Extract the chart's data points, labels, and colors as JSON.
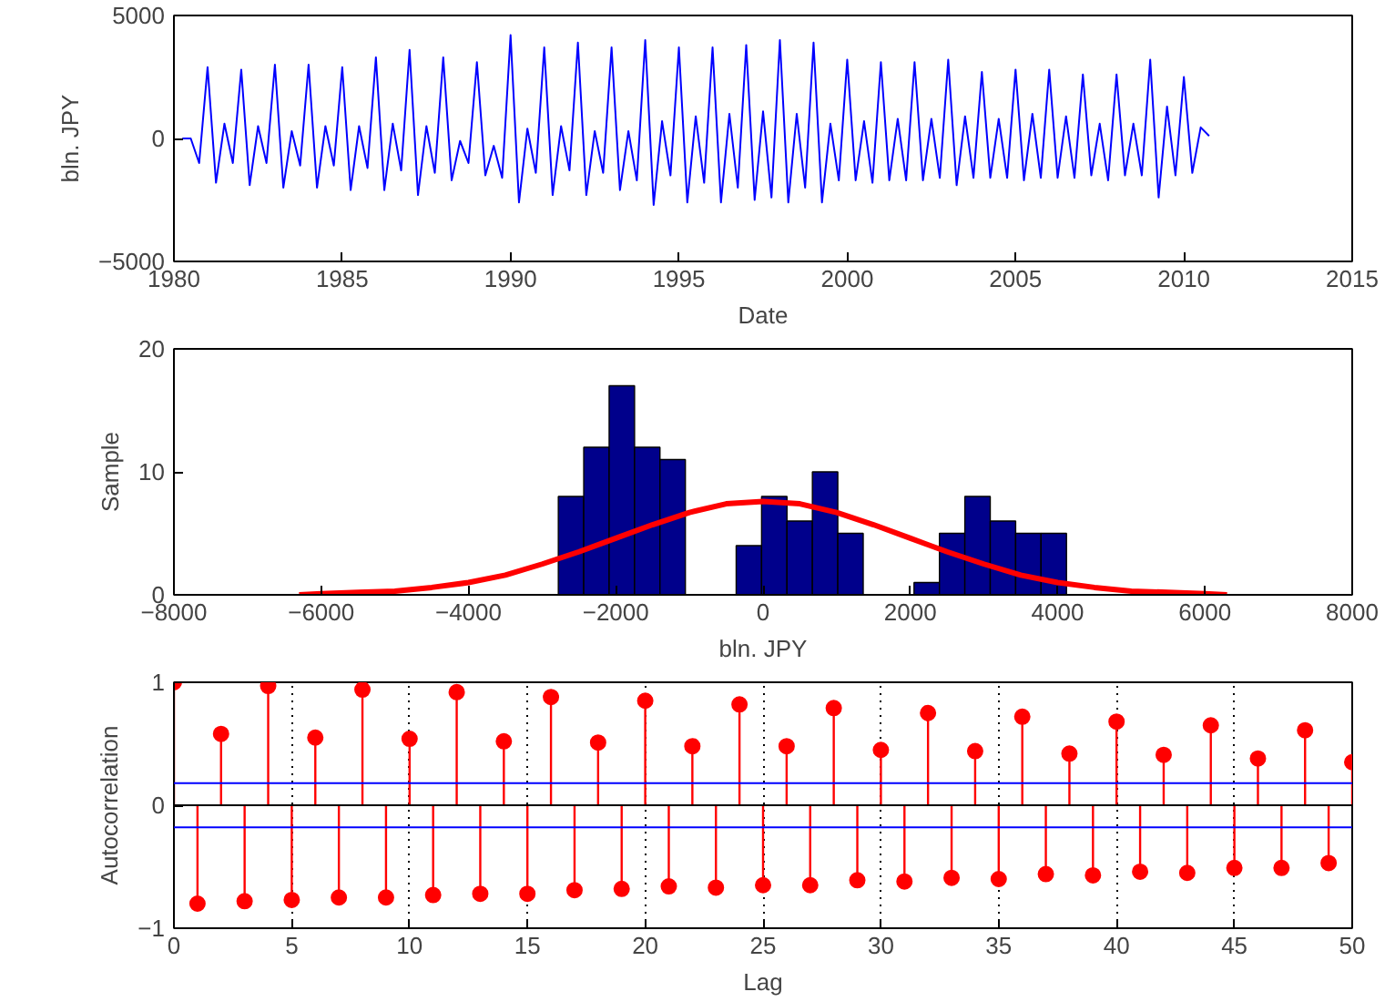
{
  "chart_data": [
    {
      "type": "line",
      "xlabel": "Date",
      "ylabel": "bln. JPY",
      "xlim": [
        1980,
        2015
      ],
      "xticks": [
        1980,
        1985,
        1990,
        1995,
        2000,
        2005,
        2010,
        2015
      ],
      "ylim": [
        -5000,
        5000
      ],
      "yticks": [
        -5000,
        0,
        5000
      ],
      "grid": false,
      "series": [
        {
          "color": "#0000ff",
          "x": [
            1980.25,
            1980.5,
            1980.75,
            1981,
            1981.25,
            1981.5,
            1981.75,
            1982,
            1982.25,
            1982.5,
            1982.75,
            1983,
            1983.25,
            1983.5,
            1983.75,
            1984,
            1984.25,
            1984.5,
            1984.75,
            1985,
            1985.25,
            1985.5,
            1985.75,
            1986,
            1986.25,
            1986.5,
            1986.75,
            1987,
            1987.25,
            1987.5,
            1987.75,
            1988,
            1988.25,
            1988.5,
            1988.75,
            1989,
            1989.25,
            1989.5,
            1989.75,
            1990,
            1990.25,
            1990.5,
            1990.75,
            1991,
            1991.25,
            1991.5,
            1991.75,
            1992,
            1992.25,
            1992.5,
            1992.75,
            1993,
            1993.25,
            1993.5,
            1993.75,
            1994,
            1994.25,
            1994.5,
            1994.75,
            1995,
            1995.25,
            1995.5,
            1995.75,
            1996,
            1996.25,
            1996.5,
            1996.75,
            1997,
            1997.25,
            1997.5,
            1997.75,
            1998,
            1998.25,
            1998.5,
            1998.75,
            1999,
            1999.25,
            1999.5,
            1999.75,
            2000,
            2000.25,
            2000.5,
            2000.75,
            2001,
            2001.25,
            2001.5,
            2001.75,
            2002,
            2002.25,
            2002.5,
            2002.75,
            2003,
            2003.25,
            2003.5,
            2003.75,
            2004,
            2004.25,
            2004.5,
            2004.75,
            2005,
            2005.25,
            2005.5,
            2005.75,
            2006,
            2006.25,
            2006.5,
            2006.75,
            2007,
            2007.25,
            2007.5,
            2007.75,
            2008,
            2008.25,
            2008.5,
            2008.75,
            2009,
            2009.25,
            2009.5,
            2009.75,
            2010,
            2010.25,
            2010.5,
            2010.75
          ],
          "values": [
            0,
            0,
            -1000,
            2900,
            -1800,
            600,
            -1000,
            2800,
            -1900,
            500,
            -1000,
            3000,
            -2000,
            300,
            -1100,
            3000,
            -2000,
            500,
            -1100,
            2900,
            -2100,
            500,
            -1200,
            3300,
            -2100,
            600,
            -1300,
            3600,
            -2300,
            500,
            -1400,
            3300,
            -1700,
            -100,
            -1000,
            3100,
            -1500,
            -300,
            -1600,
            4200,
            -2600,
            400,
            -1400,
            3700,
            -2300,
            500,
            -1300,
            3900,
            -2300,
            300,
            -1400,
            3700,
            -2100,
            300,
            -1700,
            4000,
            -2700,
            700,
            -1500,
            3700,
            -2600,
            900,
            -1800,
            3700,
            -2600,
            1000,
            -2000,
            3800,
            -2500,
            1100,
            -2400,
            4000,
            -2600,
            1000,
            -2000,
            3900,
            -2600,
            600,
            -1700,
            3200,
            -1700,
            700,
            -1800,
            3100,
            -1700,
            800,
            -1700,
            3100,
            -1700,
            800,
            -1600,
            3200,
            -1900,
            900,
            -1600,
            2700,
            -1600,
            800,
            -1600,
            2800,
            -1700,
            1000,
            -1600,
            2800,
            -1600,
            900,
            -1600,
            2600,
            -1500,
            600,
            -1700,
            2600,
            -1500,
            600,
            -1500,
            3200,
            -2400,
            1300,
            -1500,
            2500,
            -1400,
            450,
            100
          ]
        }
      ]
    },
    {
      "type": "histogram",
      "xlabel": "bln. JPY",
      "ylabel": "Sample",
      "xlim": [
        -8000,
        8000
      ],
      "xticks": [
        -8000,
        -6000,
        -4000,
        -2000,
        0,
        2000,
        4000,
        6000,
        8000
      ],
      "ylim": [
        0,
        20
      ],
      "yticks": [
        0,
        10,
        20
      ],
      "grid": false,
      "series": [
        {
          "type": "histogram",
          "color": "#00008b",
          "bins": [
            -2780,
            -2435,
            -2090,
            -1745,
            -1400,
            -1055,
            -710,
            -365,
            -20,
            325,
            670,
            1015,
            1360,
            1705,
            2050,
            2395,
            2740,
            3085,
            3430,
            3775,
            4120
          ],
          "values": [
            8,
            12,
            17,
            12,
            11,
            0,
            0,
            4,
            8,
            6,
            10,
            5,
            0,
            0,
            1,
            5,
            8,
            6,
            5,
            5
          ]
        },
        {
          "type": "line",
          "color": "#ff0000",
          "x": [
            -6300,
            -6000,
            -5500,
            -5000,
            -4500,
            -4000,
            -3500,
            -3000,
            -2500,
            -2000,
            -1500,
            -1000,
            -500,
            0,
            500,
            1000,
            1500,
            2000,
            2500,
            3000,
            3500,
            4000,
            4500,
            5000,
            5500,
            6000,
            6300
          ],
          "values": [
            0,
            0.1,
            0.2,
            0.3,
            0.6,
            1,
            1.6,
            2.5,
            3.5,
            4.6,
            5.7,
            6.7,
            7.4,
            7.6,
            7.4,
            6.7,
            5.7,
            4.6,
            3.5,
            2.5,
            1.6,
            1,
            0.6,
            0.3,
            0.2,
            0.1,
            0
          ]
        }
      ]
    },
    {
      "type": "lollipop",
      "xlabel": "Lag",
      "ylabel": "Autocorrelation",
      "xlim": [
        0,
        50
      ],
      "xticks": [
        0,
        5,
        10,
        15,
        20,
        25,
        30,
        35,
        40,
        45,
        50
      ],
      "ylim": [
        -1,
        1
      ],
      "yticks": [
        -1,
        0,
        1
      ],
      "grid": "x",
      "marker": "circle",
      "series": [
        {
          "color": "#ff0000",
          "x": [
            0,
            1,
            2,
            3,
            4,
            5,
            6,
            7,
            8,
            9,
            10,
            11,
            12,
            13,
            14,
            15,
            16,
            17,
            18,
            19,
            20,
            21,
            22,
            23,
            24,
            25,
            26,
            27,
            28,
            29,
            30,
            31,
            32,
            33,
            34,
            35,
            36,
            37,
            38,
            39,
            40,
            41,
            42,
            43,
            44,
            45,
            46,
            47,
            48,
            49,
            50
          ],
          "values": [
            1,
            -0.8,
            0.58,
            -0.78,
            0.97,
            -0.77,
            0.55,
            -0.75,
            0.94,
            -0.75,
            0.54,
            -0.73,
            0.92,
            -0.72,
            0.52,
            -0.72,
            0.88,
            -0.69,
            0.51,
            -0.68,
            0.85,
            -0.66,
            0.48,
            -0.67,
            0.82,
            -0.65,
            0.48,
            -0.65,
            0.79,
            -0.61,
            0.45,
            -0.62,
            0.75,
            -0.59,
            0.44,
            -0.6,
            0.72,
            -0.56,
            0.42,
            -0.57,
            0.68,
            -0.54,
            0.41,
            -0.55,
            0.65,
            -0.51,
            0.38,
            -0.51,
            0.61,
            -0.47,
            0.35
          ]
        }
      ],
      "ref_lines": [
        {
          "axis": "y",
          "value": 0.18,
          "color": "#0000ff"
        },
        {
          "axis": "y",
          "value": -0.18,
          "color": "#0000ff"
        }
      ]
    }
  ]
}
